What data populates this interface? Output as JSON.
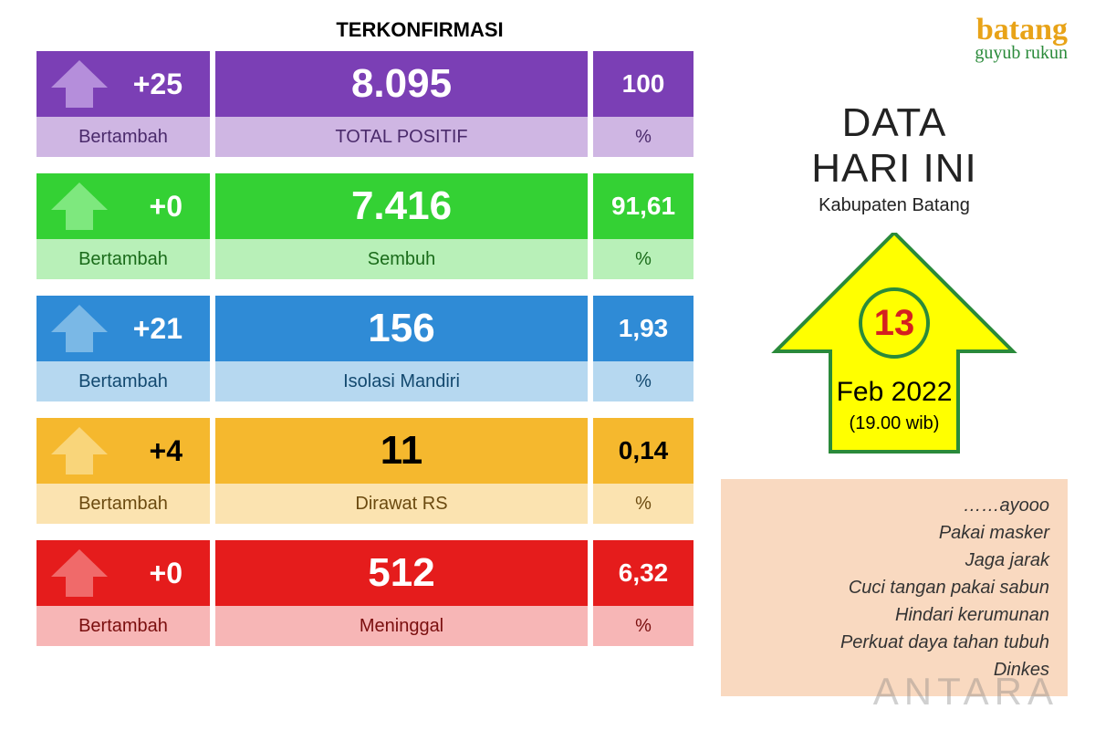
{
  "header": {
    "terkonfirmasi": "TERKONFIRMASI"
  },
  "cards": [
    {
      "delta": "+25",
      "delta_label": "Bertambah",
      "value": "8.095",
      "value_label": "TOTAL  POSITIF",
      "pct": "100",
      "pct_label": "%",
      "top_color": "#7b3fb5",
      "bot_color": "#cfb6e3",
      "bot_text": "#4a2a6b",
      "arrow_fill": "#b58edb"
    },
    {
      "delta": "+0",
      "delta_label": "Bertambah",
      "value": "7.416",
      "value_label": "Sembuh",
      "pct": "91,61",
      "pct_label": "%",
      "top_color": "#34d134",
      "bot_color": "#b8f0b8",
      "bot_text": "#1a6b1a",
      "arrow_fill": "#7ee87e"
    },
    {
      "delta": "+21",
      "delta_label": "Bertambah",
      "value": "156",
      "value_label": "Isolasi  Mandiri",
      "pct": "1,93",
      "pct_label": "%",
      "top_color": "#2f8bd6",
      "bot_color": "#b6d8f0",
      "bot_text": "#13496f",
      "arrow_fill": "#7ab8e6"
    },
    {
      "delta": "+4",
      "delta_label": "Bertambah",
      "value": "11",
      "value_label": "Dirawat RS",
      "pct": "0,14",
      "pct_label": "%",
      "top_color": "#f5b82e",
      "bot_color": "#fbe3b0",
      "bot_text": "#6b4a10",
      "arrow_fill": "#f9d57a",
      "dark_text": true
    },
    {
      "delta": "+0",
      "delta_label": "Bertambah",
      "value": "512",
      "value_label": "Meninggal",
      "pct": "6,32",
      "pct_label": "%",
      "top_color": "#e51c1c",
      "bot_color": "#f7b6b6",
      "bot_text": "#7a0e0e",
      "arrow_fill": "#f06a6a"
    }
  ],
  "logo": {
    "line1": "batang",
    "line2": "guyub rukun"
  },
  "title": {
    "line1": "DATA",
    "line2": "HARI INI",
    "sub": "Kabupaten Batang"
  },
  "date": {
    "day": "13",
    "month": "Feb 2022",
    "time": "(19.00 wib)",
    "arrow_fill": "#ffff00",
    "arrow_stroke": "#2a8a3a"
  },
  "tips": {
    "lines": [
      "……ayooo",
      "Pakai masker",
      "Jaga jarak",
      "Cuci tangan pakai sabun",
      "Hindari kerumunan",
      "Perkuat  daya  tahan  tubuh",
      "Dinkes"
    ],
    "bg": "#f9d9c0"
  },
  "watermark": "ANTARA"
}
